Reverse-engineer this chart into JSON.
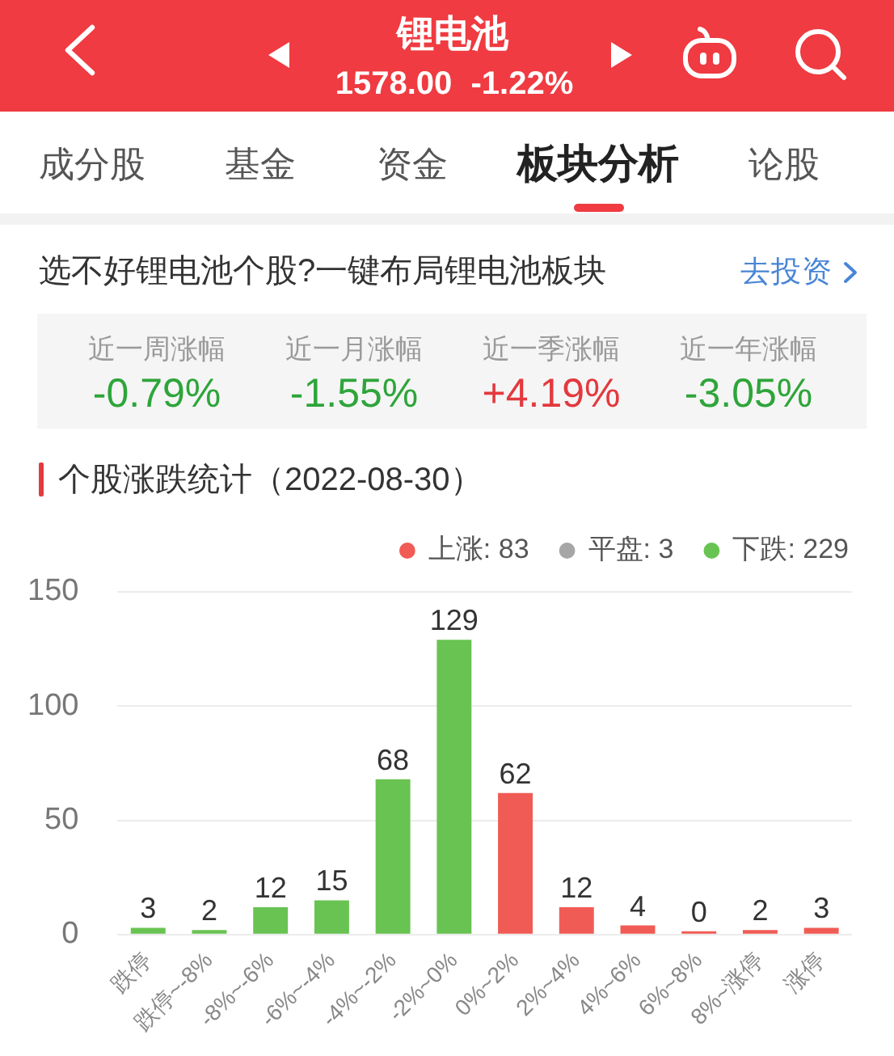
{
  "chart_data": {
    "type": "bar",
    "title": "个股涨跌统计（2022-08-30）",
    "annotations": [
      "锂电池",
      "1578.00 -1.22%",
      "成分股",
      "基金",
      "资金",
      "板块分析",
      "论股",
      "选不好锂电池个股?一键布局锂电池板块",
      "去投资",
      "近一周涨幅",
      "-0.79%",
      "近一月涨幅",
      "-1.55%",
      "近一季涨幅",
      "+4.19%",
      "近一年涨幅",
      "-3.05%"
    ],
    "categories": [
      "跌停",
      "跌停~-8%",
      "-8%~-6%",
      "-6%~-4%",
      "-4%~-2%",
      "-2%~0%",
      "0%~2%",
      "2%~4%",
      "4%~6%",
      "6%~8%",
      "8%~涨停",
      "涨停"
    ],
    "series": [
      {
        "name": "上涨: 83",
        "color": "#f15b55",
        "values": [
          null,
          null,
          null,
          null,
          null,
          null,
          62,
          12,
          4,
          0,
          2,
          3
        ]
      },
      {
        "name": "平盘: 3",
        "color": "#a6a6a6",
        "values": [
          null,
          null,
          null,
          null,
          null,
          null,
          null,
          null,
          null,
          null,
          null,
          null
        ]
      },
      {
        "name": "下跌: 229",
        "color": "#69c352",
        "values": [
          3,
          2,
          12,
          15,
          68,
          129,
          null,
          null,
          null,
          null,
          null,
          null
        ]
      }
    ],
    "ylim": [
      0,
      150
    ],
    "yticks": [
      0,
      50,
      100,
      150
    ],
    "grid": "y",
    "legend": "top right",
    "data_labels": true
  }
}
